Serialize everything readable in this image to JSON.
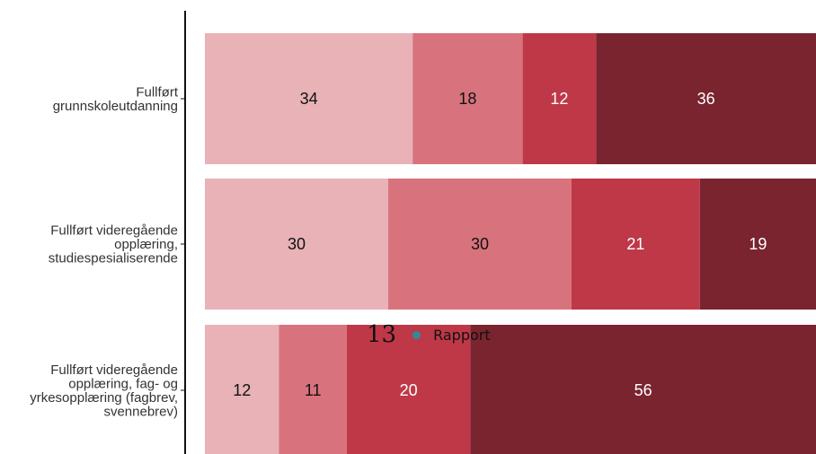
{
  "chart_data": {
    "type": "bar",
    "orientation": "horizontal",
    "stacked": true,
    "normalized": true,
    "categories": [
      [
        "Fullført",
        "grunnskoleutdanning"
      ],
      [
        "Fullført videregående",
        "opplæring,",
        "studiespesialiserende"
      ],
      [
        "Fullført videregående",
        "opplæring, fag- og",
        "yrkesopplæring (fagbrev,",
        "svennebrev)"
      ]
    ],
    "series": [
      {
        "values": [
          34,
          30,
          12
        ],
        "color": "#e8b2b7",
        "label_color": "#111111"
      },
      {
        "values": [
          18,
          30,
          11
        ],
        "color": "#d8737d",
        "label_color": "#111111"
      },
      {
        "values": [
          12,
          21,
          20
        ],
        "color": "#bf3848",
        "label_color": "#ffffff"
      },
      {
        "values": [
          36,
          19,
          56
        ],
        "color": "#7a242f",
        "label_color": "#ffffff"
      }
    ],
    "xlim": [
      0,
      100
    ],
    "grid": false,
    "legend": "none"
  },
  "overlay": {
    "page_number": "13",
    "dot_color": "#2e8b9a",
    "report_label": "Rapport"
  }
}
